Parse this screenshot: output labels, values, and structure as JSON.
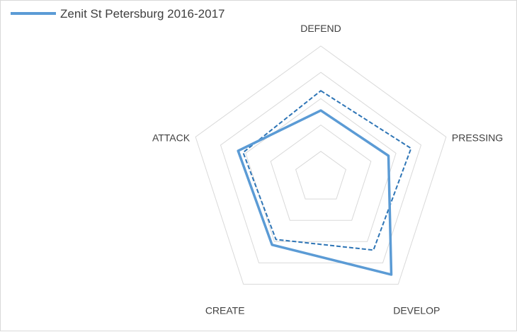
{
  "chart_data": {
    "type": "radar",
    "axes": [
      "DEFEND",
      "PRESSING",
      "DEVELOP",
      "CREATE",
      "ATTACK"
    ],
    "rlim": [
      0,
      100
    ],
    "rings": 5,
    "grid": true,
    "legend": {
      "position": "top-left"
    },
    "series": [
      {
        "name": "Zenit St Petersburg 2016-2017",
        "style": "solid",
        "color": "#5b9bd5",
        "values": [
          51,
          54,
          91,
          63,
          66
        ]
      },
      {
        "style": "dashed",
        "color": "#2e75b6",
        "values": [
          66,
          72,
          68,
          58,
          62
        ]
      }
    ]
  }
}
